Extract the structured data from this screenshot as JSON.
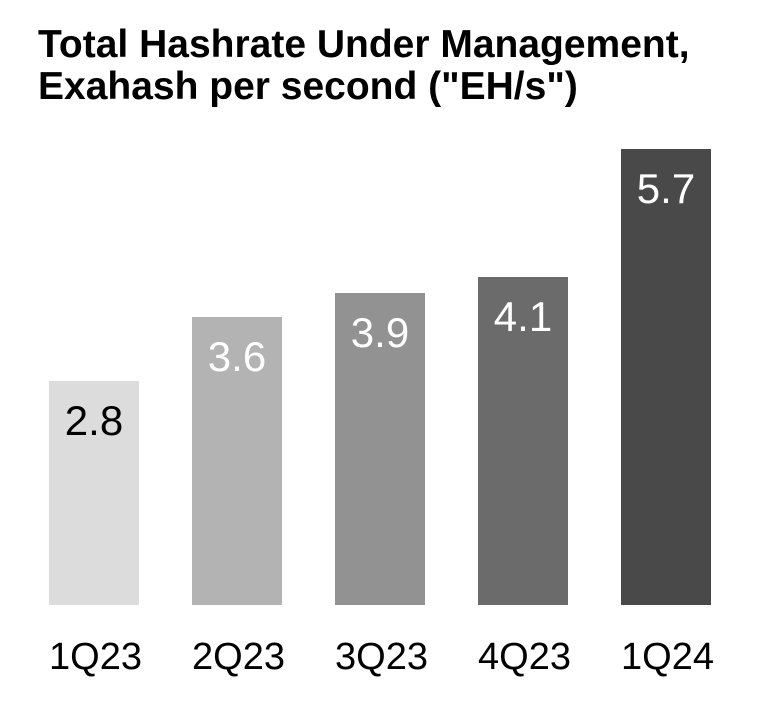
{
  "title": {
    "line1": "Total Hashrate Under Management,",
    "line2": "Exahash per second (\"EH/s\")"
  },
  "chart_data": {
    "type": "bar",
    "title": "Total Hashrate Under Management, Exahash per second (\"EH/s\")",
    "categories": [
      "1Q23",
      "2Q23",
      "3Q23",
      "4Q23",
      "1Q24"
    ],
    "values": [
      2.8,
      3.6,
      3.9,
      4.1,
      5.7
    ],
    "value_labels": [
      "2.8",
      "3.6",
      "3.9",
      "4.1",
      "5.7"
    ],
    "unit": "EH/s",
    "bar_colors": [
      "#dcdcdc",
      "#b3b3b3",
      "#929292",
      "#6b6b6b",
      "#494949"
    ],
    "value_label_colors": [
      "#000000",
      "#ffffff",
      "#ffffff",
      "#ffffff",
      "#ffffff"
    ],
    "axis_label_color": "#000000",
    "title_color": "#000000",
    "background_color": "#ffffff",
    "ylim": [
      0,
      6
    ],
    "grid": false,
    "legend": false,
    "y_axis_shown": false,
    "data_label_position": "inside-top"
  }
}
